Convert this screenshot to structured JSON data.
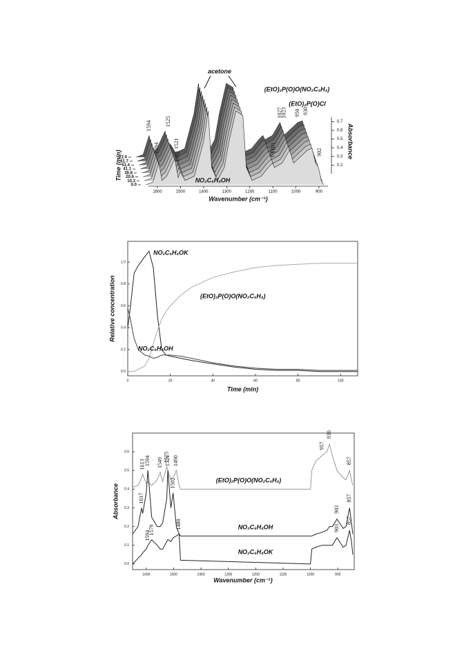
{
  "chart_data": [
    {
      "type": "waterfall",
      "x_label": "Wavenumber (cm⁻¹)",
      "y_label": "Absorbance",
      "z_label": "Time (min)",
      "annotations": [
        "acetone",
        "(EtO)₂P(O)O(NO₂C₆H₄)",
        "(EtO)₂P(O)Cl",
        "NO₂C₆H₄OH"
      ],
      "xlim": [
        1600,
        900
      ],
      "xticks": [
        1600,
        1500,
        1400,
        1300,
        1200,
        1100,
        1000,
        900
      ],
      "ylim": [
        0.1,
        0.75
      ],
      "yticks": [
        0.2,
        0.3,
        0.4,
        0.5,
        0.6,
        0.7
      ],
      "zticks": [
        {
          "value": 72,
          "label": "72.0"
        },
        61.7,
        51.4,
        41.1,
        30.8,
        20.6,
        10.3,
        {
          "value": 0,
          "label": "0.0"
        }
      ],
      "x": [
        1650,
        1620,
        1594,
        1580,
        1560,
        1525,
        1510,
        1502,
        1480,
        1440,
        1420,
        1400,
        1380,
        1365,
        1340,
        1310,
        1290,
        1260,
        1230,
        1215,
        1190,
        1150,
        1120,
        1101,
        1093,
        1060,
        1027,
        1010,
        990,
        950,
        930,
        915,
        902,
        890,
        880
      ],
      "values": [
        0.1,
        0.13,
        0.35,
        0.15,
        0.2,
        0.4,
        0.18,
        0.25,
        0.15,
        0.2,
        0.4,
        0.6,
        0.95,
        0.3,
        0.15,
        0.3,
        0.6,
        0.95,
        0.9,
        0.3,
        0.15,
        0.2,
        0.3,
        0.35,
        0.3,
        0.35,
        0.5,
        0.35,
        0.4,
        0.5,
        0.52,
        0.35,
        0.3,
        0.15,
        0.1
      ],
      "peaks_back": [
        1594,
        1525,
        1027,
        1023,
        950,
        930
      ],
      "peaks_front": [
        1594,
        1521,
        1502,
        1101,
        1093,
        902
      ]
    },
    {
      "type": "line",
      "x_label": "Time (min)",
      "y_label": "Relative concentration",
      "xlim": [
        0,
        108
      ],
      "xticks": [
        0,
        20,
        40,
        60,
        80,
        100
      ],
      "ylim": [
        -0.04,
        1.19
      ],
      "yticks": [
        {
          "value": 0,
          "label": "0.0"
        },
        0.2,
        0.4,
        0.6,
        0.8,
        {
          "value": 1,
          "label": "1.0"
        }
      ],
      "x": [
        0,
        1,
        3,
        5,
        8,
        10,
        12,
        14,
        16,
        18,
        20,
        25,
        30,
        40,
        50,
        60,
        70,
        80,
        90,
        100,
        108
      ],
      "series": [
        {
          "name": "NO₂C₆H₄OK",
          "color": "#222222",
          "values": [
            0.4,
            0.55,
            0.9,
            0.97,
            1.05,
            1.1,
            0.95,
            0.5,
            0.2,
            0.15,
            0.14,
            0.12,
            0.1,
            0.07,
            0.04,
            0.02,
            0.01,
            0.01,
            0,
            0,
            0
          ]
        },
        {
          "name": "(EtO)₂P(O)O(NO₂C₆H₄)",
          "color": "#aaaaaa",
          "values": [
            0,
            0,
            0,
            0.02,
            0.05,
            0.12,
            0.25,
            0.38,
            0.48,
            0.55,
            0.6,
            0.7,
            0.77,
            0.86,
            0.91,
            0.95,
            0.97,
            0.98,
            0.99,
            0.99,
            0.99
          ]
        },
        {
          "name": "NO₂C₆H₄OH",
          "color": "#444444",
          "values": [
            0.58,
            0.5,
            0.3,
            0.2,
            0.15,
            0.14,
            0.12,
            0.13,
            0.15,
            0.15,
            0.15,
            0.14,
            0.12,
            0.08,
            0.05,
            0.03,
            0.02,
            0.02,
            0.01,
            0.01,
            0.01
          ]
        }
      ]
    },
    {
      "type": "spectra",
      "x_label": "Wavenumber (cm⁻¹)",
      "y_label": "Absorbance",
      "xlim": [
        1650,
        840
      ],
      "xticks": [
        1600,
        1500,
        1400,
        1300,
        1200,
        1100,
        1000,
        900
      ],
      "ylim": [
        -0.03,
        0.7
      ],
      "yticks": [
        {
          "value": 0,
          "label": "0.0"
        },
        0.1,
        0.2,
        0.3,
        0.4,
        0.5,
        0.6
      ],
      "x": [
        1650,
        1630,
        1617,
        1613,
        1600,
        1594,
        1580,
        1560,
        1549,
        1540,
        1525,
        1521,
        1510,
        1502,
        1490,
        1480,
        1475,
        1000,
        995,
        980,
        957,
        940,
        930,
        920,
        903,
        880,
        870,
        857,
        850,
        845
      ],
      "series": [
        {
          "name": "(EtO)₂P(O)O(NO₂C₆H₄)",
          "color": "#999999",
          "values": [
            0.41,
            0.42,
            0.46,
            0.48,
            0.43,
            0.44,
            0.42,
            0.45,
            0.49,
            0.44,
            0.52,
            0.5,
            0.45,
            0.46,
            0.5,
            0.42,
            0.4,
            0.4,
            0.5,
            0.55,
            0.58,
            0.6,
            0.64,
            0.58,
            0.5,
            0.46,
            0.45,
            0.5,
            0.45,
            0.42
          ],
          "peaks": [
            1613,
            1549,
            1525,
            1490,
            957,
            930,
            857
          ]
        },
        {
          "name": "NO₂C₆H₄OH",
          "color": "#222222",
          "values": [
            0.16,
            0.2,
            0.3,
            0.27,
            0.38,
            0.5,
            0.25,
            0.2,
            0.2,
            0.22,
            0.35,
            0.5,
            0.3,
            0.38,
            0.2,
            0.16,
            0.15,
            0.15,
            0.15,
            0.16,
            0.17,
            0.18,
            0.2,
            0.2,
            0.24,
            0.19,
            0.2,
            0.3,
            0.22,
            0.16
          ],
          "peaks": [
            1617,
            1594,
            1521,
            1502,
            903,
            857
          ]
        },
        {
          "name": "NO₂C₆H₄OK",
          "color": "#222222",
          "values": [
            0,
            0.03,
            0.05,
            0.06,
            0.08,
            0.1,
            0.13,
            0.1,
            0.08,
            0.08,
            0.12,
            0.13,
            0.12,
            0.14,
            0.15,
            0.16,
            0.02,
            0,
            0.08,
            0.09,
            0.1,
            0.1,
            0.1,
            0.1,
            0.14,
            0.09,
            0.1,
            0.18,
            0.12,
            0.05
          ],
          "peaks": [
            1594,
            1579,
            1480,
            903,
            857
          ]
        }
      ]
    }
  ]
}
